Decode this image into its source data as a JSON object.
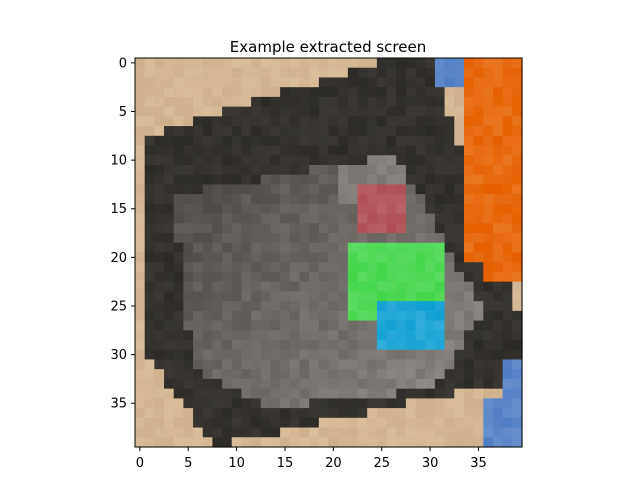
{
  "chart_data": {
    "type": "heatmap",
    "title": "Example extracted screen",
    "xlabel": "",
    "ylabel": "",
    "rows": 40,
    "cols": 40,
    "xlim": [
      -0.5,
      39.5
    ],
    "ylim": [
      39.5,
      -0.5
    ],
    "x_ticks": [
      0,
      5,
      10,
      15,
      20,
      25,
      30,
      35
    ],
    "y_ticks": [
      0,
      5,
      10,
      15,
      20,
      25,
      30,
      35
    ],
    "grid": false,
    "palette": {
      "background": "#cdb08e",
      "device_dark": "#2c2a27",
      "device_mid": "#4a4642",
      "device_light": "#7a7570",
      "screen_highlight": "#9a9590",
      "orange": "#e8690f",
      "blue": "#5b86c9",
      "red": "#b55a60",
      "green": "#4fd855",
      "cyan": "#1fa6d6",
      "purple": "#7a7ab0"
    },
    "regions": [
      {
        "name": "orange-object",
        "color": "orange",
        "cells": [
          [
            33,
            0,
            39,
            1
          ],
          [
            34,
            1,
            39,
            20
          ],
          [
            36,
            20,
            39,
            22
          ]
        ]
      },
      {
        "name": "blue-object-top",
        "color": "blue",
        "cells": [
          [
            31,
            0,
            33,
            2
          ]
        ]
      },
      {
        "name": "blue-object-bottom",
        "color": "blue",
        "cells": [
          [
            38,
            31,
            39,
            39
          ],
          [
            36,
            35,
            38,
            39
          ]
        ]
      },
      {
        "name": "device-body",
        "color": "device_dark",
        "cells": []
      },
      {
        "name": "red-patch",
        "color": "red",
        "cells": [
          [
            23,
            13,
            27,
            17
          ]
        ]
      },
      {
        "name": "green-patch",
        "color": "green",
        "cells": [
          [
            22,
            19,
            31,
            26
          ]
        ]
      },
      {
        "name": "cyan-patch",
        "color": "cyan",
        "cells": [
          [
            25,
            25,
            31,
            29
          ]
        ]
      }
    ]
  }
}
